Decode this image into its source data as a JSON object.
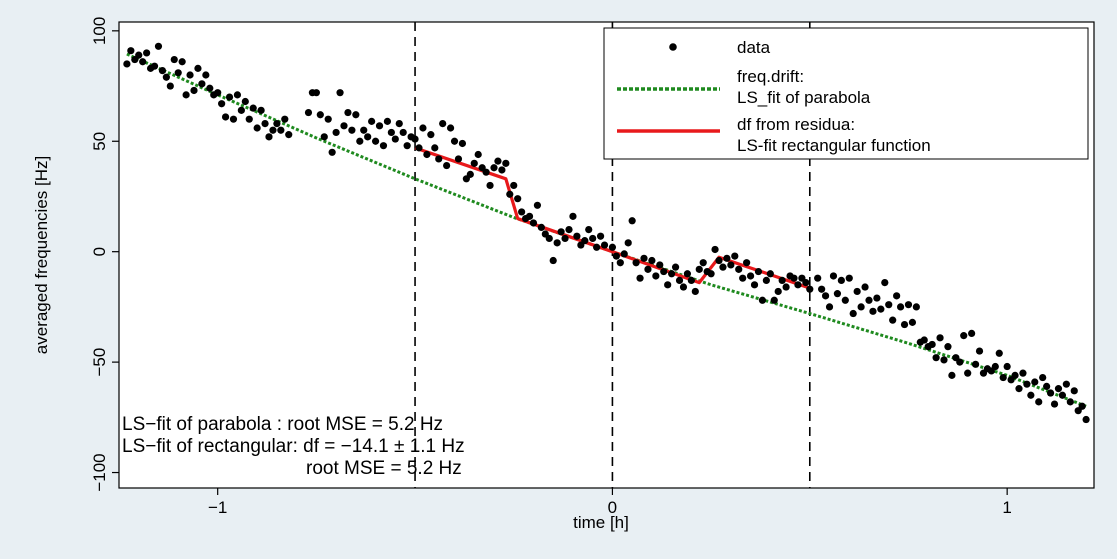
{
  "chart_data": {
    "type": "scatter",
    "xlabel": "time  [h]",
    "ylabel": "averaged frequencies  [Hz]",
    "xlim": [
      -1.25,
      1.22
    ],
    "ylim": [
      -107,
      104
    ],
    "x_ticks": [
      -1,
      0,
      1
    ],
    "x_tick_labels": [
      "−1",
      "0",
      "1"
    ],
    "y_ticks": [
      -100,
      -50,
      0,
      50,
      100
    ],
    "y_tick_labels": [
      "−100",
      "−50",
      "0",
      "50",
      "100"
    ],
    "grid": false,
    "legend_position": "top-right",
    "vertical_dashed_lines_x": [
      -0.5,
      0,
      0.5
    ],
    "series": [
      {
        "name": "data",
        "kind": "scatter",
        "color": "#000000",
        "points": [
          [
            -1.23,
            85
          ],
          [
            -1.22,
            91
          ],
          [
            -1.21,
            87
          ],
          [
            -1.2,
            89
          ],
          [
            -1.19,
            86
          ],
          [
            -1.18,
            90
          ],
          [
            -1.17,
            83
          ],
          [
            -1.16,
            84
          ],
          [
            -1.15,
            93
          ],
          [
            -1.14,
            82
          ],
          [
            -1.13,
            79
          ],
          [
            -1.12,
            75
          ],
          [
            -1.11,
            87
          ],
          [
            -1.1,
            81
          ],
          [
            -1.09,
            86
          ],
          [
            -1.08,
            71
          ],
          [
            -1.07,
            80
          ],
          [
            -1.06,
            73
          ],
          [
            -1.05,
            83
          ],
          [
            -1.04,
            76
          ],
          [
            -1.03,
            80
          ],
          [
            -1.02,
            74
          ],
          [
            -1.01,
            71
          ],
          [
            -1.0,
            72
          ],
          [
            -0.99,
            67
          ],
          [
            -0.98,
            61
          ],
          [
            -0.97,
            70
          ],
          [
            -0.96,
            60
          ],
          [
            -0.95,
            71
          ],
          [
            -0.94,
            64
          ],
          [
            -0.93,
            68
          ],
          [
            -0.92,
            60
          ],
          [
            -0.91,
            65
          ],
          [
            -0.9,
            56
          ],
          [
            -0.89,
            64
          ],
          [
            -0.88,
            58
          ],
          [
            -0.87,
            52
          ],
          [
            -0.86,
            55
          ],
          [
            -0.85,
            58
          ],
          [
            -0.84,
            55
          ],
          [
            -0.83,
            60
          ],
          [
            -0.82,
            53
          ],
          [
            -0.77,
            63
          ],
          [
            -0.76,
            72
          ],
          [
            -0.75,
            72
          ],
          [
            -0.74,
            62
          ],
          [
            -0.73,
            52
          ],
          [
            -0.72,
            60
          ],
          [
            -0.71,
            45
          ],
          [
            -0.7,
            54
          ],
          [
            -0.69,
            72
          ],
          [
            -0.68,
            57
          ],
          [
            -0.67,
            63
          ],
          [
            -0.66,
            55
          ],
          [
            -0.65,
            62
          ],
          [
            -0.64,
            50
          ],
          [
            -0.63,
            55
          ],
          [
            -0.62,
            52
          ],
          [
            -0.61,
            59
          ],
          [
            -0.6,
            50
          ],
          [
            -0.59,
            57
          ],
          [
            -0.58,
            48
          ],
          [
            -0.57,
            59
          ],
          [
            -0.56,
            54
          ],
          [
            -0.55,
            51
          ],
          [
            -0.54,
            58
          ],
          [
            -0.53,
            54
          ],
          [
            -0.52,
            48
          ],
          [
            -0.51,
            52
          ],
          [
            -0.5,
            51
          ],
          [
            -0.49,
            47
          ],
          [
            -0.48,
            56
          ],
          [
            -0.47,
            44
          ],
          [
            -0.46,
            53
          ],
          [
            -0.45,
            47
          ],
          [
            -0.44,
            42
          ],
          [
            -0.43,
            58
          ],
          [
            -0.42,
            39
          ],
          [
            -0.41,
            56
          ],
          [
            -0.4,
            50
          ],
          [
            -0.39,
            42
          ],
          [
            -0.38,
            49
          ],
          [
            -0.37,
            33
          ],
          [
            -0.36,
            35
          ],
          [
            -0.35,
            40
          ],
          [
            -0.34,
            44
          ],
          [
            -0.33,
            38
          ],
          [
            -0.32,
            36
          ],
          [
            -0.31,
            30
          ],
          [
            -0.3,
            38
          ],
          [
            -0.29,
            41
          ],
          [
            -0.28,
            37
          ],
          [
            -0.27,
            40
          ],
          [
            -0.26,
            26
          ],
          [
            -0.25,
            30
          ],
          [
            -0.24,
            24
          ],
          [
            -0.23,
            18
          ],
          [
            -0.22,
            15
          ],
          [
            -0.21,
            16
          ],
          [
            -0.2,
            13
          ],
          [
            -0.19,
            21
          ],
          [
            -0.18,
            11
          ],
          [
            -0.17,
            8
          ],
          [
            -0.16,
            6
          ],
          [
            -0.15,
            -4
          ],
          [
            -0.14,
            4
          ],
          [
            -0.13,
            9
          ],
          [
            -0.12,
            6
          ],
          [
            -0.11,
            10
          ],
          [
            -0.1,
            16
          ],
          [
            -0.09,
            7
          ],
          [
            -0.08,
            3
          ],
          [
            -0.07,
            5
          ],
          [
            -0.06,
            10
          ],
          [
            -0.05,
            6
          ],
          [
            -0.04,
            2
          ],
          [
            -0.03,
            7
          ],
          [
            -0.02,
            3
          ],
          [
            0.0,
            2
          ],
          [
            0.01,
            -2
          ],
          [
            0.02,
            -5
          ],
          [
            0.03,
            -1
          ],
          [
            0.04,
            4
          ],
          [
            0.05,
            14
          ],
          [
            0.06,
            -5
          ],
          [
            0.07,
            -12
          ],
          [
            0.08,
            -3
          ],
          [
            0.09,
            -8
          ],
          [
            0.1,
            -4
          ],
          [
            0.11,
            -11
          ],
          [
            0.12,
            -6
          ],
          [
            0.13,
            -9
          ],
          [
            0.14,
            -15
          ],
          [
            0.15,
            -10
          ],
          [
            0.16,
            -7
          ],
          [
            0.17,
            -13
          ],
          [
            0.18,
            -16
          ],
          [
            0.19,
            -10
          ],
          [
            0.2,
            -13
          ],
          [
            0.21,
            -18
          ],
          [
            0.22,
            -8
          ],
          [
            0.23,
            -5
          ],
          [
            0.24,
            -9
          ],
          [
            0.25,
            -10
          ],
          [
            0.26,
            1
          ],
          [
            0.27,
            -4
          ],
          [
            0.28,
            -7
          ],
          [
            0.29,
            -3
          ],
          [
            0.3,
            -6
          ],
          [
            0.31,
            -2
          ],
          [
            0.32,
            -8
          ],
          [
            0.33,
            -12
          ],
          [
            0.34,
            -5
          ],
          [
            0.35,
            -11
          ],
          [
            0.36,
            -15
          ],
          [
            0.37,
            -9
          ],
          [
            0.38,
            -22
          ],
          [
            0.39,
            -13
          ],
          [
            0.4,
            -10
          ],
          [
            0.41,
            -22
          ],
          [
            0.42,
            -18
          ],
          [
            0.43,
            -13
          ],
          [
            0.44,
            -16
          ],
          [
            0.45,
            -11
          ],
          [
            0.46,
            -12
          ],
          [
            0.47,
            -15
          ],
          [
            0.48,
            -12
          ],
          [
            0.49,
            -14
          ],
          [
            0.5,
            -17
          ],
          [
            0.52,
            -12
          ],
          [
            0.53,
            -17
          ],
          [
            0.54,
            -20
          ],
          [
            0.55,
            -25
          ],
          [
            0.56,
            -11
          ],
          [
            0.57,
            -19
          ],
          [
            0.58,
            -13
          ],
          [
            0.59,
            -22
          ],
          [
            0.6,
            -12
          ],
          [
            0.61,
            -28
          ],
          [
            0.62,
            -18
          ],
          [
            0.63,
            -25
          ],
          [
            0.64,
            -16
          ],
          [
            0.65,
            -22
          ],
          [
            0.66,
            -27
          ],
          [
            0.67,
            -21
          ],
          [
            0.68,
            -26
          ],
          [
            0.69,
            -14
          ],
          [
            0.7,
            -24
          ],
          [
            0.71,
            -31
          ],
          [
            0.72,
            -20
          ],
          [
            0.73,
            -25
          ],
          [
            0.74,
            -33
          ],
          [
            0.75,
            -24
          ],
          [
            0.76,
            -32
          ],
          [
            0.77,
            -25
          ],
          [
            0.78,
            -41
          ],
          [
            0.79,
            -40
          ],
          [
            0.8,
            -43
          ],
          [
            0.81,
            -42
          ],
          [
            0.82,
            -48
          ],
          [
            0.83,
            -39
          ],
          [
            0.84,
            -49
          ],
          [
            0.85,
            -43
          ],
          [
            0.86,
            -56
          ],
          [
            0.87,
            -48
          ],
          [
            0.88,
            -50
          ],
          [
            0.89,
            -38
          ],
          [
            0.9,
            -55
          ],
          [
            0.91,
            -37
          ],
          [
            0.92,
            -51
          ],
          [
            0.93,
            -45
          ],
          [
            0.94,
            -55
          ],
          [
            0.95,
            -53
          ],
          [
            0.96,
            -54
          ],
          [
            0.97,
            -52
          ],
          [
            0.98,
            -46
          ],
          [
            0.99,
            -57
          ],
          [
            1.0,
            -52
          ],
          [
            1.01,
            -58
          ],
          [
            1.02,
            -56
          ],
          [
            1.03,
            -62
          ],
          [
            1.04,
            -55
          ],
          [
            1.05,
            -60
          ],
          [
            1.06,
            -65
          ],
          [
            1.07,
            -59
          ],
          [
            1.08,
            -68
          ],
          [
            1.09,
            -57
          ],
          [
            1.1,
            -61
          ],
          [
            1.11,
            -64
          ],
          [
            1.12,
            -69
          ],
          [
            1.13,
            -62
          ],
          [
            1.14,
            -65
          ],
          [
            1.15,
            -60
          ],
          [
            1.16,
            -68
          ],
          [
            1.17,
            -63
          ],
          [
            1.18,
            -72
          ],
          [
            1.19,
            -70
          ],
          [
            1.2,
            -76
          ]
        ]
      },
      {
        "name": "freq.drift:",
        "name_line2": "LS_fit of parabola",
        "kind": "line",
        "style": "dotted",
        "color": "#1f8a1f",
        "x": [
          -1.23,
          -1.0,
          -0.75,
          -0.5,
          -0.25,
          0.0,
          0.25,
          0.5,
          0.75,
          1.0,
          1.2
        ],
        "y": [
          89.5,
          71.0,
          51.5,
          33.0,
          15.5,
          0.0,
          -15.0,
          -28.0,
          -41.5,
          -56.0,
          -70.0
        ]
      },
      {
        "name": "df from residua:",
        "name_line2": "LS-fit rectangular function",
        "kind": "line",
        "style": "solid",
        "color": "#e8191b",
        "segments": [
          {
            "x": [
              -0.5,
              -0.27,
              -0.24,
              0.0,
              0.22,
              0.27,
              0.5
            ],
            "y": [
              47.0,
              33.0,
              15.0,
              0.0,
              -14.0,
              -2.5,
              -16.5
            ]
          }
        ]
      }
    ],
    "annotations": [
      "LS−fit of parabola : root MSE = 5.2 Hz",
      "LS−fit of rectangular: df = −14.1 ± 1.1 Hz",
      "root MSE =   5.2 Hz"
    ]
  }
}
